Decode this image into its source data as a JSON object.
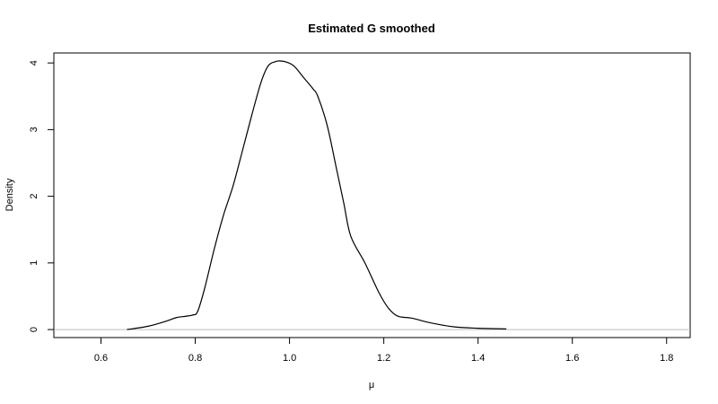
{
  "chart_data": {
    "type": "line",
    "title": "Estimated G smoothed",
    "xlabel": "μ",
    "ylabel": "Density",
    "xlim": [
      0.5,
      1.85
    ],
    "ylim": [
      -0.12,
      4.15
    ],
    "x_ticks": [
      0.6,
      0.8,
      1.0,
      1.2,
      1.4,
      1.6,
      1.8
    ],
    "x_tick_labels": [
      "0.6",
      "0.8",
      "1.0",
      "1.2",
      "1.4",
      "1.6",
      "1.8"
    ],
    "y_ticks": [
      0,
      1,
      2,
      3,
      4
    ],
    "y_tick_labels": [
      "0",
      "1",
      "2",
      "3",
      "4"
    ],
    "reference_line_y": 0,
    "reference_line_color": "#bebebe",
    "line_color": "#000000",
    "grid": false,
    "series": [
      {
        "x": [
          0.655,
          0.7,
          0.74,
          0.76,
          0.78,
          0.795,
          0.805,
          0.82,
          0.84,
          0.86,
          0.88,
          0.9,
          0.92,
          0.94,
          0.955,
          0.97,
          0.98,
          0.995,
          1.01,
          1.03,
          1.05,
          1.06,
          1.08,
          1.1,
          1.115,
          1.13,
          1.16,
          1.19,
          1.21,
          1.23,
          1.26,
          1.3,
          1.35,
          1.4,
          1.46
        ],
        "y": [
          0.0,
          0.05,
          0.13,
          0.18,
          0.2,
          0.22,
          0.27,
          0.62,
          1.2,
          1.72,
          2.15,
          2.68,
          3.22,
          3.72,
          3.96,
          4.02,
          4.03,
          4.01,
          3.95,
          3.78,
          3.61,
          3.5,
          3.06,
          2.4,
          1.9,
          1.4,
          1.0,
          0.55,
          0.32,
          0.2,
          0.17,
          0.1,
          0.04,
          0.02,
          0.01
        ]
      }
    ]
  }
}
